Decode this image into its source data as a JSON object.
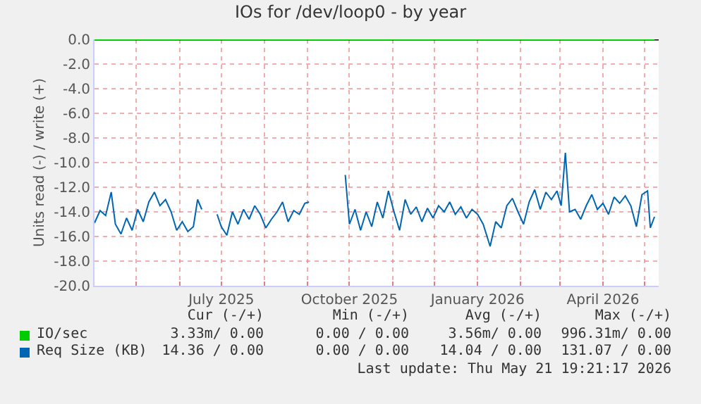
{
  "chart_data": {
    "type": "line",
    "title": "IOs for /dev/loop0 - by year",
    "ylabel": "Units read (-) / write (+)",
    "xlim": [
      "2025-04-01",
      "2026-05-11"
    ],
    "ylim": [
      -20,
      0
    ],
    "yticks": [
      {
        "value": 0,
        "label": "0.0"
      },
      {
        "value": -2,
        "label": "-2.0"
      },
      {
        "value": -4,
        "label": "-4.0"
      },
      {
        "value": -6,
        "label": "-6.0"
      },
      {
        "value": -8,
        "label": "-8.0"
      },
      {
        "value": -10,
        "label": "-10.0"
      },
      {
        "value": -12,
        "label": "-12.0"
      },
      {
        "value": -14,
        "label": "-14.0"
      },
      {
        "value": -16,
        "label": "-16.0"
      },
      {
        "value": -18,
        "label": "-18.0"
      },
      {
        "value": -20,
        "label": "-20.0"
      }
    ],
    "xticks": [
      {
        "value": "2025-05-01",
        "label": null
      },
      {
        "value": "2025-06-01",
        "label": null
      },
      {
        "value": "2025-07-01",
        "label": "July 2025"
      },
      {
        "value": "2025-08-01",
        "label": null
      },
      {
        "value": "2025-09-01",
        "label": null
      },
      {
        "value": "2025-10-01",
        "label": "October 2025"
      },
      {
        "value": "2025-11-01",
        "label": null
      },
      {
        "value": "2025-12-01",
        "label": null
      },
      {
        "value": "2026-01-01",
        "label": "January 2026"
      },
      {
        "value": "2026-02-01",
        "label": null
      },
      {
        "value": "2026-03-01",
        "label": null
      },
      {
        "value": "2026-04-01",
        "label": "April 2026"
      },
      {
        "value": "2026-05-01",
        "label": null
      }
    ],
    "grid": true,
    "legend": "bottom",
    "ref_lines": [
      {
        "axis": "y",
        "value": 0,
        "label": null,
        "color": "#000000"
      }
    ],
    "series": [
      {
        "name": "IO/sec",
        "color": "#00cc00",
        "x": [
          "2025-04-01",
          "2026-05-08"
        ],
        "values": [
          0,
          0
        ]
      },
      {
        "name": "Req Size (KB)",
        "color": "#0066b3",
        "x": [
          "2025-04-01",
          "2025-04-05",
          "2025-04-09",
          "2025-04-13",
          "2025-04-16",
          "2025-04-20",
          "2025-04-24",
          "2025-04-28",
          "2025-05-02",
          "2025-05-06",
          "2025-05-10",
          "2025-05-14",
          "2025-05-18",
          "2025-05-22",
          "2025-05-26",
          "2025-05-30",
          "2025-06-03",
          "2025-06-07",
          "2025-06-11",
          "2025-06-14",
          "2025-06-17",
          "2025-06-21",
          "2025-06-28",
          "2025-07-01",
          "2025-07-05",
          "2025-07-09",
          "2025-07-13",
          "2025-07-17",
          "2025-07-21",
          "2025-07-25",
          "2025-07-29",
          "2025-08-02",
          "2025-08-06",
          "2025-08-10",
          "2025-08-14",
          "2025-08-18",
          "2025-08-22",
          "2025-08-26",
          "2025-08-30",
          "2025-09-02",
          "2025-09-10",
          "2025-09-28",
          "2025-10-01",
          "2025-10-05",
          "2025-10-09",
          "2025-10-13",
          "2025-10-17",
          "2025-10-21",
          "2025-10-25",
          "2025-10-29",
          "2025-11-02",
          "2025-11-06",
          "2025-11-10",
          "2025-11-14",
          "2025-11-18",
          "2025-11-22",
          "2025-11-26",
          "2025-11-30",
          "2025-12-04",
          "2025-12-08",
          "2025-12-12",
          "2025-12-16",
          "2025-12-20",
          "2025-12-24",
          "2025-12-28",
          "2026-01-01",
          "2026-01-05",
          "2026-01-10",
          "2026-01-14",
          "2026-01-18",
          "2026-01-22",
          "2026-01-26",
          "2026-01-30",
          "2026-02-03",
          "2026-02-07",
          "2026-02-11",
          "2026-02-15",
          "2026-02-19",
          "2026-02-23",
          "2026-02-27",
          "2026-03-02",
          "2026-03-05",
          "2026-03-08",
          "2026-03-12",
          "2026-03-16",
          "2026-03-20",
          "2026-03-24",
          "2026-03-28",
          "2026-04-01",
          "2026-04-05",
          "2026-04-09",
          "2026-04-13",
          "2026-04-17",
          "2026-04-21",
          "2026-04-25",
          "2026-04-29",
          "2026-05-03",
          "2026-05-05",
          "2026-05-08"
        ],
        "values": [
          -14.9,
          -13.9,
          -14.3,
          -12.4,
          -15.0,
          -15.8,
          -14.5,
          -15.5,
          -13.8,
          -14.8,
          -13.2,
          -12.4,
          -13.5,
          -13.0,
          -14.0,
          -15.5,
          -14.8,
          -15.6,
          -15.2,
          -13.0,
          -13.8,
          null,
          -14.2,
          -15.2,
          -15.9,
          -14.0,
          -15.0,
          -13.8,
          -14.6,
          -13.5,
          -14.2,
          -15.3,
          -14.6,
          -14.0,
          -13.2,
          -14.8,
          -13.9,
          -14.2,
          -13.3,
          -13.2,
          null,
          -11.0,
          -15.0,
          -13.8,
          -15.5,
          -14.0,
          -15.2,
          -13.2,
          -14.5,
          -12.3,
          -14.0,
          -15.5,
          -13.0,
          -14.2,
          -13.6,
          -14.8,
          -13.7,
          -14.5,
          -13.5,
          -14.0,
          -13.2,
          -14.2,
          -13.6,
          -14.5,
          -13.8,
          -14.2,
          -15.0,
          -16.8,
          -14.8,
          -15.3,
          -13.5,
          -12.9,
          -14.0,
          -15.0,
          -13.2,
          -12.2,
          -13.8,
          -12.4,
          -13.0,
          -12.3,
          -13.5,
          -9.2,
          -14.0,
          -13.8,
          -14.6,
          -13.5,
          -12.6,
          -13.8,
          -13.3,
          -14.2,
          -12.8,
          -13.3,
          -12.7,
          -13.5,
          -15.2,
          -12.6,
          -12.3,
          -15.3,
          -14.4
        ]
      }
    ],
    "annotations": [
      "Cur (-/+)",
      "Min (-/+)",
      "Avg (-/+)",
      "Max (-/+)",
      "3.33m/ 0.00",
      "0.00 / 0.00",
      "3.56m/ 0.00",
      "996.31m/ 0.00",
      "14.36 / 0.00",
      "0.00 / 0.00",
      "14.04 / 0.00",
      "131.07 / 0.00",
      "Last update: Thu May 21 19:21:17 2026"
    ]
  }
}
